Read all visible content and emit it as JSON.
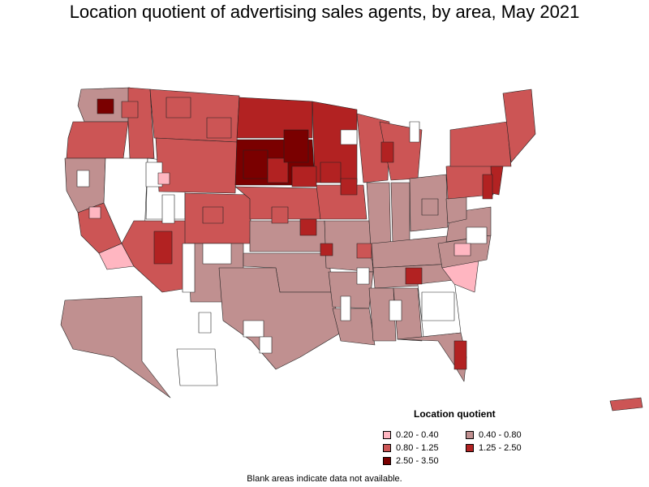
{
  "title": "Location quotient of advertising sales agents, by area, May 2021",
  "legend": {
    "title": "Location quotient",
    "items": [
      {
        "label": "0.20 - 0.40",
        "color": "#ffb6c1"
      },
      {
        "label": "0.40 - 0.80",
        "color": "#c09090"
      },
      {
        "label": "0.80 - 1.25",
        "color": "#cc5555"
      },
      {
        "label": "1.25 - 2.50",
        "color": "#b22222"
      },
      {
        "label": "2.50 - 3.50",
        "color": "#7a0000"
      }
    ]
  },
  "footnote": "Blank areas indicate data not available.",
  "colors": {
    "blank": "#ffffff",
    "border": "#000000"
  }
}
